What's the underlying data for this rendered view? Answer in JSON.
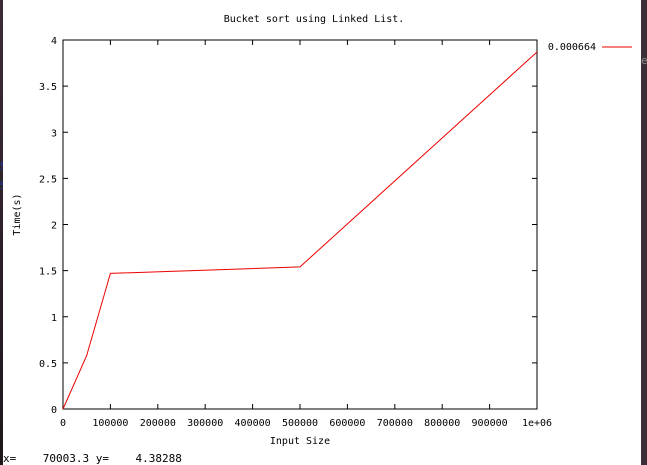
{
  "window": {
    "status": {
      "x_label": "x=",
      "x_value": "70003.3",
      "y_label": "y=",
      "y_value": "4.38288"
    }
  },
  "colors": {
    "series": "#ee0000",
    "axes": "#000000",
    "background": "#ffffff"
  },
  "chart_data": {
    "type": "line",
    "title": "Bucket sort using Linked List.",
    "xlabel": "Input Size",
    "ylabel": "Time(s)",
    "xlim": [
      0,
      1000000
    ],
    "ylim": [
      0,
      4
    ],
    "grid": false,
    "legend_position": "top-right",
    "x_ticks": [
      {
        "v": 0,
        "label": "0"
      },
      {
        "v": 100000,
        "label": "100000"
      },
      {
        "v": 200000,
        "label": "200000"
      },
      {
        "v": 300000,
        "label": "300000"
      },
      {
        "v": 400000,
        "label": "400000"
      },
      {
        "v": 500000,
        "label": "500000"
      },
      {
        "v": 600000,
        "label": "600000"
      },
      {
        "v": 700000,
        "label": "700000"
      },
      {
        "v": 800000,
        "label": "800000"
      },
      {
        "v": 900000,
        "label": "900000"
      },
      {
        "v": 1000000,
        "label": "1e+06"
      }
    ],
    "y_ticks": [
      {
        "v": 0,
        "label": "0"
      },
      {
        "v": 0.5,
        "label": "0.5"
      },
      {
        "v": 1,
        "label": "1"
      },
      {
        "v": 1.5,
        "label": "1.5"
      },
      {
        "v": 2,
        "label": "2"
      },
      {
        "v": 2.5,
        "label": "2.5"
      },
      {
        "v": 3,
        "label": "3"
      },
      {
        "v": 3.5,
        "label": "3.5"
      },
      {
        "v": 4,
        "label": "4"
      }
    ],
    "series": [
      {
        "name": "0.000664",
        "x": [
          0,
          50000,
          100000,
          500000,
          1000000
        ],
        "y": [
          0,
          0.58,
          1.47,
          1.54,
          3.87
        ]
      }
    ]
  }
}
